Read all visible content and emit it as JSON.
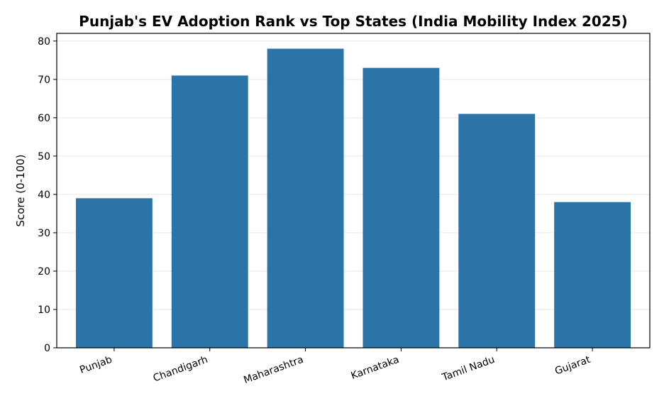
{
  "chart_data": {
    "type": "bar",
    "title": "Punjab's EV Adoption Rank vs Top States (India Mobility Index 2025)",
    "xlabel": "",
    "ylabel": "Score (0-100)",
    "categories": [
      "Punjab",
      "Chandigarh",
      "Maharashtra",
      "Karnataka",
      "Tamil Nadu",
      "Gujarat"
    ],
    "values": [
      39,
      71,
      78,
      73,
      61,
      38
    ],
    "ylim": [
      0,
      82
    ],
    "yticks": [
      0,
      10,
      20,
      30,
      40,
      50,
      60,
      70,
      80
    ],
    "grid": "horizontal",
    "bar_color": "#2a74a8",
    "grid_color": "#e6e6e6"
  }
}
